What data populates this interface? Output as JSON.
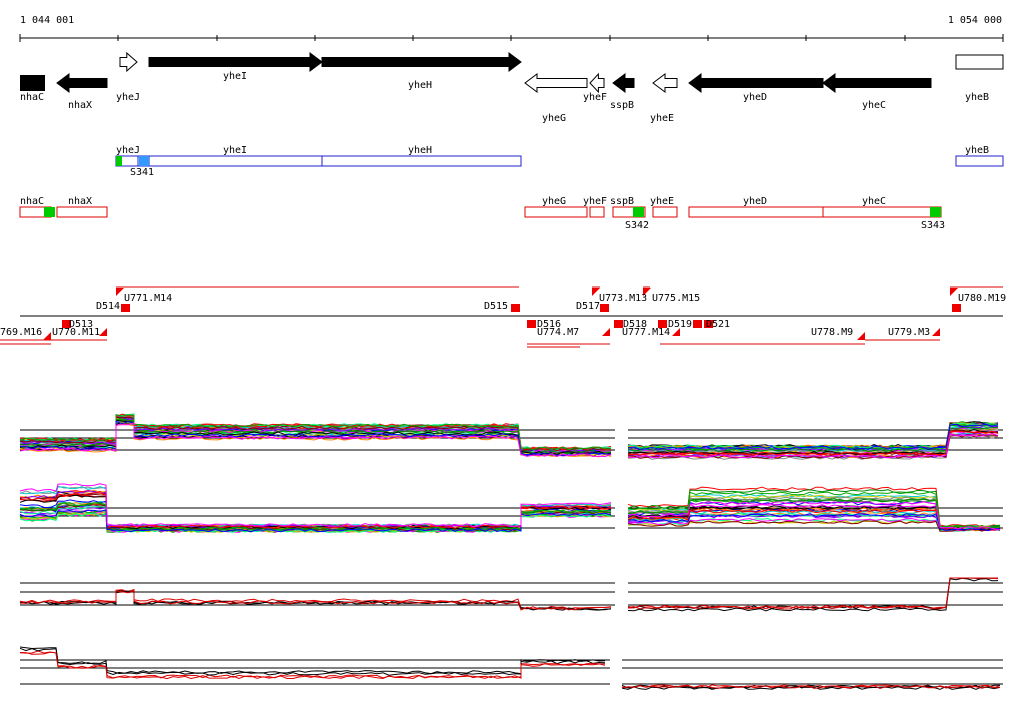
{
  "ruler": {
    "start": "1 044 001",
    "end": "1 054 000"
  },
  "genes": [
    "nhaC",
    "nhaX",
    "yheJ",
    "yheI",
    "yheH",
    "yheG",
    "yheF",
    "sspB",
    "yheE",
    "yheD",
    "yheC",
    "yheB"
  ],
  "blue_track": {
    "boxes": [
      "yheJ",
      "yheI",
      "yheH",
      "yheB"
    ],
    "site": "S341"
  },
  "red_track": {
    "boxes": [
      "nhaC",
      "nhaX",
      "yheG",
      "yheF",
      "sspB",
      "yheE",
      "yheD",
      "yheC"
    ],
    "sites": [
      "S342",
      "S343"
    ]
  },
  "transcripts": [
    "D514",
    "U771.M14",
    "D515",
    "D517",
    "U773.M13",
    "U775.M15",
    "U780.M19",
    "D513",
    "769.M16",
    "U770.M11",
    "D516",
    "U774.M7",
    "D518",
    "U777.M14",
    "D519",
    "D521",
    "U778.M9",
    "U779.M3"
  ]
}
